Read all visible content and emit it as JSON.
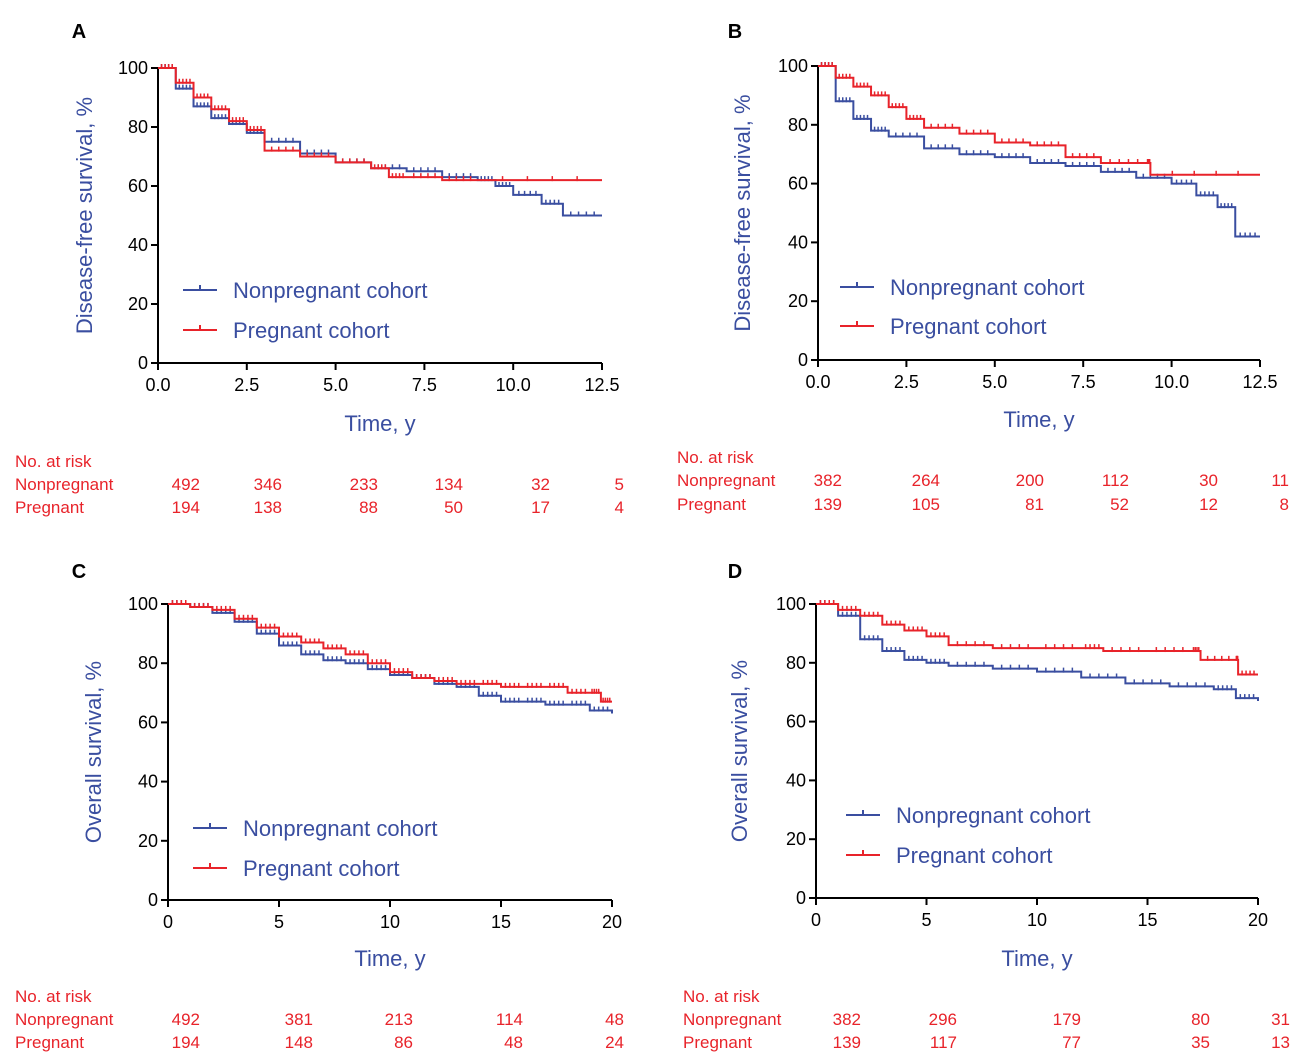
{
  "colors": {
    "nonpregnant": "#3a4ea0",
    "pregnant": "#e8232a",
    "axis": "#000000",
    "risk_text": "#e8232a"
  },
  "chart_data": [
    {
      "type": "line",
      "panel": "A",
      "xlabel": "Time, y",
      "ylabel": "Disease-free survival, %",
      "xlim": [
        0,
        12.5
      ],
      "ylim": [
        0,
        100
      ],
      "xticks": [
        "0.0",
        "2.5",
        "5.0",
        "7.5",
        "10.0",
        "12.5"
      ],
      "yticks": [
        "0",
        "20",
        "40",
        "60",
        "80",
        "100"
      ],
      "legend": {
        "placement": "lower-left"
      },
      "series": [
        {
          "name": "Nonpregnant cohort",
          "key": "nonpregnant",
          "x": [
            0,
            0.5,
            1.0,
            1.5,
            2.0,
            2.5,
            3.0,
            4.0,
            5.0,
            6.0,
            7.0,
            8.0,
            9.0,
            9.5,
            10.0,
            10.8,
            11.4,
            12.5
          ],
          "y": [
            100,
            93,
            87,
            83,
            81,
            78,
            75,
            71,
            68,
            66,
            65,
            63,
            62,
            60,
            57,
            54,
            50,
            50
          ]
        },
        {
          "name": "Pregnant cohort",
          "key": "pregnant",
          "x": [
            0,
            0.5,
            1.0,
            1.5,
            2.0,
            2.5,
            3.0,
            4.0,
            5.0,
            6.0,
            6.5,
            7.0,
            8.0,
            9.0,
            12.5
          ],
          "y": [
            100,
            95,
            90,
            86,
            82,
            79,
            72,
            70,
            68,
            66,
            63,
            63,
            62,
            62,
            62
          ]
        }
      ],
      "risk_table": {
        "header": "No. at risk",
        "rows": [
          {
            "label": "Nonpregnant",
            "values": [
              "492",
              "346",
              "233",
              "134",
              "32",
              "5"
            ]
          },
          {
            "label": "Pregnant",
            "values": [
              "194",
              "138",
              "88",
              "50",
              "17",
              "4"
            ]
          }
        ]
      }
    },
    {
      "type": "line",
      "panel": "B",
      "xlabel": "Time, y",
      "ylabel": "Disease-free survival, %",
      "xlim": [
        0,
        12.5
      ],
      "ylim": [
        0,
        100
      ],
      "xticks": [
        "0.0",
        "2.5",
        "5.0",
        "7.5",
        "10.0",
        "12.5"
      ],
      "yticks": [
        "0",
        "20",
        "40",
        "60",
        "80",
        "100"
      ],
      "legend": {
        "placement": "lower-left"
      },
      "series": [
        {
          "name": "Nonpregnant cohort",
          "key": "nonpregnant",
          "x": [
            0,
            0.5,
            1.0,
            1.5,
            2.0,
            3.0,
            4.0,
            5.0,
            6.0,
            7.0,
            8.0,
            9.0,
            10.0,
            10.7,
            11.3,
            11.8,
            12.5
          ],
          "y": [
            100,
            88,
            82,
            78,
            76,
            72,
            70,
            69,
            67,
            66,
            64,
            62,
            60,
            56,
            52,
            42,
            42
          ]
        },
        {
          "name": "Pregnant cohort",
          "key": "pregnant",
          "x": [
            0,
            0.5,
            1.0,
            1.5,
            2.0,
            2.5,
            3.0,
            4.0,
            5.0,
            6.0,
            7.0,
            8.0,
            9.3,
            9.4,
            12.5
          ],
          "y": [
            100,
            96,
            93,
            90,
            86,
            82,
            79,
            77,
            74,
            73,
            69,
            67,
            67,
            63,
            63
          ]
        }
      ],
      "risk_table": {
        "header": "No. at risk",
        "rows": [
          {
            "label": "Nonpregnant",
            "values": [
              "382",
              "264",
              "200",
              "112",
              "30",
              "11"
            ]
          },
          {
            "label": "Pregnant",
            "values": [
              "139",
              "105",
              "81",
              "52",
              "12",
              "8"
            ]
          }
        ]
      }
    },
    {
      "type": "line",
      "panel": "C",
      "xlabel": "Time, y",
      "ylabel": "Overall survival,   %",
      "xlim": [
        0,
        20
      ],
      "ylim": [
        0,
        100
      ],
      "xticks": [
        "0",
        "5",
        "10",
        "15",
        "20"
      ],
      "yticks": [
        "0",
        "20",
        "40",
        "60",
        "80",
        "100"
      ],
      "legend": {
        "placement": "lower-left"
      },
      "series": [
        {
          "name": "Nonpregnant cohort",
          "key": "nonpregnant",
          "x": [
            0,
            1,
            2,
            3,
            4,
            5,
            6,
            7,
            8,
            9,
            10,
            11,
            12,
            13,
            14,
            15,
            16,
            17,
            18,
            19,
            20
          ],
          "y": [
            100,
            99,
            97,
            94,
            90,
            86,
            83,
            81,
            80,
            78,
            76,
            75,
            73,
            72,
            69,
            67,
            67,
            66,
            66,
            64,
            63
          ]
        },
        {
          "name": "Pregnant cohort",
          "key": "pregnant",
          "x": [
            0,
            1,
            2,
            3,
            4,
            5,
            6,
            7,
            8,
            9,
            10,
            11,
            12,
            13,
            14,
            15,
            16,
            17,
            18,
            19,
            19.5,
            20
          ],
          "y": [
            100,
            99,
            98,
            95,
            92,
            89,
            87,
            85,
            83,
            80,
            77,
            75,
            74,
            73,
            73,
            72,
            72,
            72,
            70,
            70,
            67,
            67
          ]
        }
      ],
      "risk_table": {
        "header": "No. at risk",
        "rows": [
          {
            "label": "Nonpregnant",
            "values": [
              "492",
              "381",
              "213",
              "114",
              "48"
            ]
          },
          {
            "label": "Pregnant",
            "values": [
              "194",
              "148",
              "86",
              "48",
              "24"
            ]
          }
        ]
      }
    },
    {
      "type": "line",
      "panel": "D",
      "xlabel": "Time, y",
      "ylabel": "Overall survival,   %",
      "xlim": [
        0,
        20
      ],
      "ylim": [
        0,
        100
      ],
      "xticks": [
        "0",
        "5",
        "10",
        "15",
        "20"
      ],
      "yticks": [
        "0",
        "20",
        "40",
        "60",
        "80",
        "100"
      ],
      "legend": {
        "placement": "lower-left"
      },
      "series": [
        {
          "name": "Nonpregnant cohort",
          "key": "nonpregnant",
          "x": [
            0,
            1,
            2,
            3,
            4,
            5,
            6,
            8,
            10,
            12,
            14,
            16,
            18,
            19,
            20
          ],
          "y": [
            100,
            96,
            88,
            84,
            81,
            80,
            79,
            78,
            77,
            75,
            73,
            72,
            71,
            68,
            67
          ]
        },
        {
          "name": "Pregnant cohort",
          "key": "pregnant",
          "x": [
            0,
            1,
            2,
            3,
            4,
            5,
            6,
            8,
            10,
            12,
            13,
            15,
            17,
            17.4,
            19,
            19.1,
            20
          ],
          "y": [
            100,
            98,
            96,
            93,
            91,
            89,
            86,
            85,
            85,
            85,
            84,
            84,
            84,
            81,
            81,
            76,
            76
          ]
        }
      ],
      "risk_table": {
        "header": "No. at risk",
        "rows": [
          {
            "label": "Nonpregnant",
            "values": [
              "382",
              "296",
              "179",
              "80",
              "31"
            ]
          },
          {
            "label": "Pregnant",
            "values": [
              "139",
              "117",
              "77",
              "35",
              "13"
            ]
          }
        ]
      }
    }
  ]
}
